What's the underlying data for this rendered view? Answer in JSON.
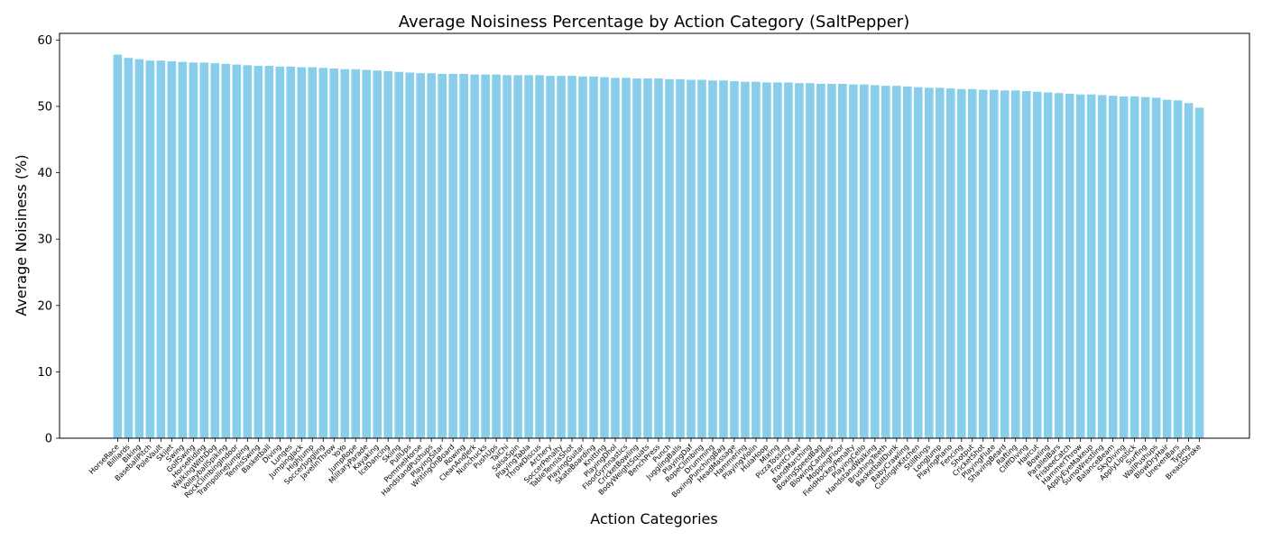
{
  "chart_data": {
    "type": "bar",
    "title": "Average Noisiness Percentage by Action Category (SaltPepper)",
    "xlabel": "Action Categories",
    "ylabel": "Average Noisiness (%)",
    "ylim": [
      0,
      61
    ],
    "yticks": [
      0,
      10,
      20,
      30,
      40,
      50,
      60
    ],
    "grid": false,
    "legend": "none",
    "bar_color": "#87ceeb",
    "categories": [
      "HorseRace",
      "Billiards",
      "Biking",
      "BaseballPitch",
      "PoleVault",
      "Skijet",
      "Swing",
      "GolfSwing",
      "HorseRiding",
      "WalkingWithDog",
      "VolleyballSpiking",
      "RockClimbingIndoor",
      "TrampolineJumping",
      "TennisSwing",
      "Basketball",
      "Diving",
      "Lunges",
      "JumpingJack",
      "HighJump",
      "SoccerJuggling",
      "JavelinThrow",
      "YoYo",
      "JumpRope",
      "MilitaryParade",
      "Kayaking",
      "IceDancing",
      "Skiing",
      "PullUps",
      "PommelHorse",
      "HandstandPushups",
      "PlayingSitar",
      "WritingOnBoard",
      "Rowing",
      "CleanAndJerk",
      "Nunchucks",
      "PushUps",
      "TaiChi",
      "SalsaSpin",
      "PlayingTabla",
      "ThrowDiscus",
      "Archery",
      "SoccerPenalty",
      "TableTennisShot",
      "PlayingGuitar",
      "SkateBoarding",
      "Knitting",
      "PlayingDhol",
      "FloorGymnastics",
      "CricketBowling",
      "BodyWeightSquats",
      "BenchPress",
      "Punch",
      "JugglingBalls",
      "PlayingDaf",
      "RopeClimbing",
      "Drumming",
      "BoxingPunchingBag",
      "HeadMassage",
      "Hammering",
      "PlayingViolin",
      "HulaHoop",
      "Mixing",
      "PizzaTossing",
      "FrontCrawl",
      "BandMarching",
      "BoxingSpeedBag",
      "BlowingCandles",
      "MoppingFloor",
      "FieldHockeyPenalty",
      "PlayingCello",
      "HandstandWalking",
      "BrushingTeeth",
      "BasketballDunk",
      "BabyCrawling",
      "CuttingInKitchen",
      "StillRings",
      "LongJump",
      "PlayingPiano",
      "Fencing",
      "Shotput",
      "CricketShot",
      "PlayingFlute",
      "ShavingBeard",
      "Rafting",
      "CliffDiving",
      "Haircut",
      "Bowling",
      "ParallelBars",
      "FrisbeeCatch",
      "HammerThrow",
      "ApplyEyeMakeup",
      "SumoWrestling",
      "BalanceBeam",
      "SkyDiving",
      "ApplyLipstick",
      "Surfing",
      "WallPushups",
      "BlowDryHair",
      "UnevenBars",
      "Typing",
      "BreastStroke"
    ],
    "values": [
      57.8,
      57.3,
      57.1,
      56.9,
      56.9,
      56.8,
      56.7,
      56.6,
      56.6,
      56.5,
      56.4,
      56.3,
      56.2,
      56.1,
      56.1,
      56.0,
      56.0,
      55.9,
      55.9,
      55.8,
      55.7,
      55.6,
      55.6,
      55.5,
      55.4,
      55.3,
      55.2,
      55.1,
      55.0,
      55.0,
      54.9,
      54.9,
      54.9,
      54.8,
      54.8,
      54.8,
      54.7,
      54.7,
      54.7,
      54.7,
      54.6,
      54.6,
      54.6,
      54.5,
      54.5,
      54.4,
      54.3,
      54.3,
      54.2,
      54.2,
      54.2,
      54.1,
      54.1,
      54.0,
      54.0,
      53.9,
      53.9,
      53.8,
      53.7,
      53.7,
      53.6,
      53.6,
      53.6,
      53.5,
      53.5,
      53.4,
      53.4,
      53.4,
      53.3,
      53.3,
      53.2,
      53.1,
      53.1,
      53.0,
      52.9,
      52.8,
      52.8,
      52.7,
      52.6,
      52.6,
      52.5,
      52.5,
      52.4,
      52.4,
      52.3,
      52.2,
      52.1,
      52.0,
      51.9,
      51.8,
      51.8,
      51.7,
      51.6,
      51.5,
      51.5,
      51.4,
      51.3,
      51.0,
      50.9,
      50.5,
      49.8
    ]
  }
}
